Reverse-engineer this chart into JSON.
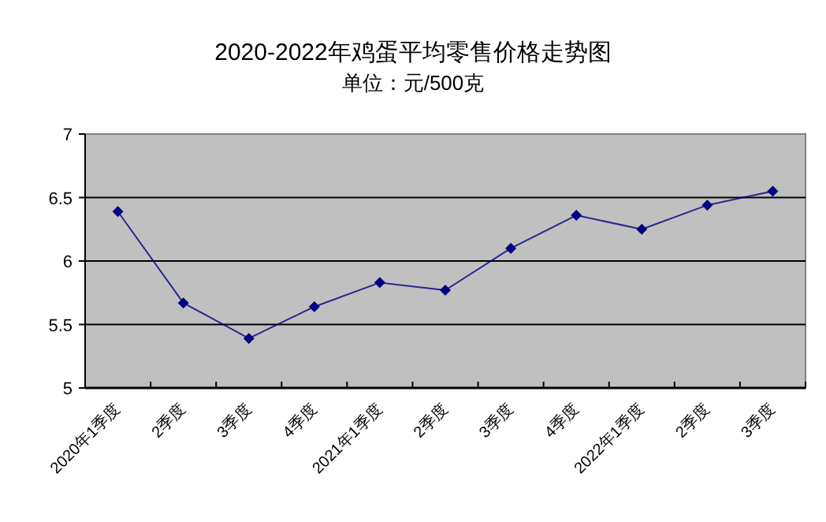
{
  "chart_data": {
    "type": "line",
    "title": "2020-2022年鸡蛋平均零售价格走势图",
    "subtitle": "单位：元/500克",
    "categories": [
      "2020年1季度",
      "2季度",
      "3季度",
      "4季度",
      "2021年1季度",
      "2季度",
      "3季度",
      "4季度",
      "2022年1季度",
      "2季度",
      "3季度"
    ],
    "series": [
      {
        "color": "#000080",
        "values": [
          6.39,
          5.67,
          5.39,
          5.64,
          5.83,
          5.77,
          6.1,
          6.36,
          6.25,
          6.44,
          6.55
        ]
      }
    ],
    "ylim": [
      5,
      7
    ],
    "yticks": [
      5,
      5.5,
      6,
      6.5,
      7
    ],
    "grid": "y",
    "marker": "diamond",
    "line_style": "solid"
  }
}
